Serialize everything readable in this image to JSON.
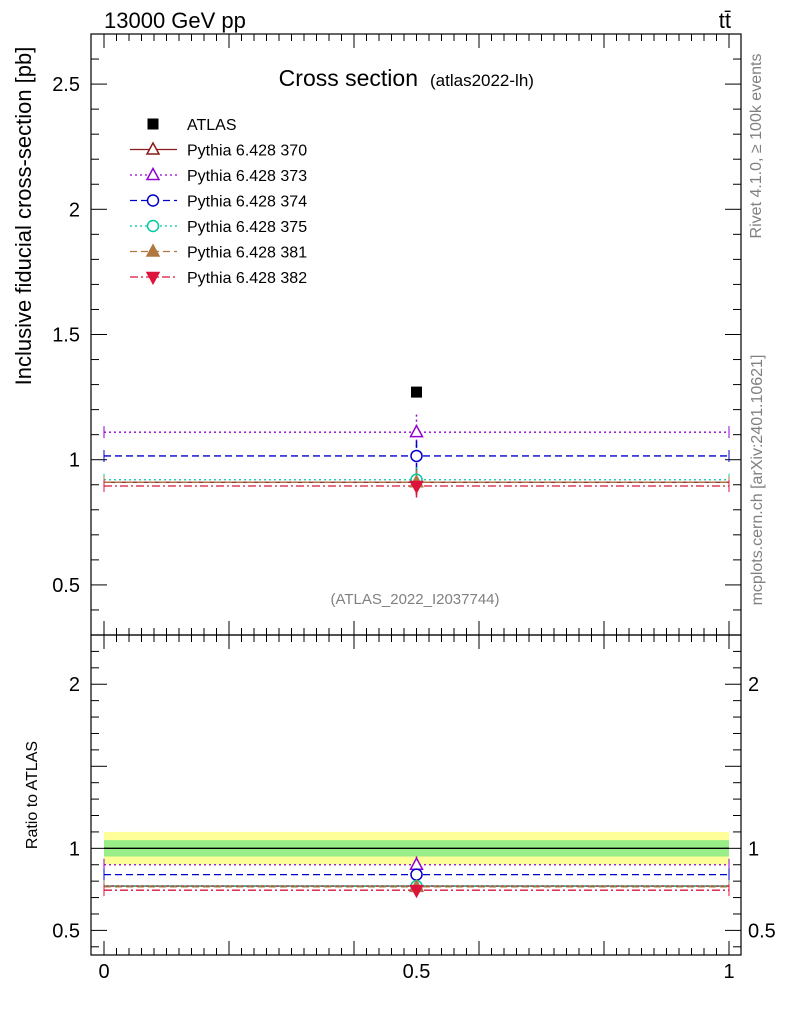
{
  "header": {
    "energy": "13000 GeV pp",
    "process": "tt̄"
  },
  "side_labels": {
    "rivet": "Rivet 4.1.0, ≥ 100k events",
    "mcplots": "mcplots.cern.ch [arXiv:2401.10621]"
  },
  "chart_data": [
    {
      "type": "scatter",
      "panel": "main",
      "title": "Cross section",
      "subtitle": "(atlas2022-lh)",
      "ylabel": "Inclusive fiducial cross-section [pb]",
      "xlabel": "",
      "watermark": "(ATLAS_2022_I2037744)",
      "xlim": [
        0,
        1
      ],
      "ylim": [
        0.3,
        2.7
      ],
      "ytick_labels": [
        "0.5",
        "1",
        "1.5",
        "2",
        "2.5"
      ],
      "legend_position": "top-left",
      "series": [
        {
          "name": "ATLAS",
          "x": 0.5,
          "y": 1.27,
          "err": 0,
          "color": "#000000",
          "marker": "square-filled",
          "dash": "none",
          "is_data": true
        },
        {
          "name": "Pythia 6.428 370",
          "x": 0.5,
          "y": 0.91,
          "err": 0.05,
          "color": "#8b1a1a",
          "marker": "triangle-up-open",
          "dash": "solid"
        },
        {
          "name": "Pythia 6.428 373",
          "x": 0.5,
          "y": 1.11,
          "err": 0.07,
          "color": "#9400d3",
          "marker": "triangle-up-open",
          "dash": "dotted"
        },
        {
          "name": "Pythia 6.428 374",
          "x": 0.5,
          "y": 1.015,
          "err": 0.06,
          "color": "#0000cd",
          "marker": "circle-open",
          "dash": "dashed"
        },
        {
          "name": "Pythia 6.428 375",
          "x": 0.5,
          "y": 0.92,
          "err": 0.05,
          "color": "#00c8a0",
          "marker": "circle-open",
          "dash": "dotted"
        },
        {
          "name": "Pythia 6.428 381",
          "x": 0.5,
          "y": 0.91,
          "err": 0.05,
          "color": "#b07840",
          "marker": "triangle-up-filled",
          "dash": "dashed"
        },
        {
          "name": "Pythia 6.428 382",
          "x": 0.5,
          "y": 0.895,
          "err": 0.05,
          "color": "#dc143c",
          "marker": "triangle-down-filled",
          "dash": "dashdot"
        }
      ]
    },
    {
      "type": "scatter",
      "panel": "ratio",
      "ylabel": "Ratio to ATLAS",
      "xlabel": "",
      "xlim": [
        0,
        1
      ],
      "ylim": [
        0.35,
        2.3
      ],
      "xtick_labels": [
        "0",
        "0.5",
        "1"
      ],
      "ytick_labels": [
        "0.5",
        "1",
        "2"
      ],
      "band_inner": [
        0.95,
        1.05
      ],
      "band_outer": [
        0.9,
        1.1
      ],
      "series": [
        {
          "name": "Pythia 6.428 370",
          "y": 0.77,
          "err": 0.04
        },
        {
          "name": "Pythia 6.428 373",
          "y": 0.9,
          "err": 0.05
        },
        {
          "name": "Pythia 6.428 374",
          "y": 0.84,
          "err": 0.05
        },
        {
          "name": "Pythia 6.428 375",
          "y": 0.77,
          "err": 0.04
        },
        {
          "name": "Pythia 6.428 381",
          "y": 0.765,
          "err": 0.04
        },
        {
          "name": "Pythia 6.428 382",
          "y": 0.745,
          "err": 0.04
        }
      ]
    }
  ]
}
